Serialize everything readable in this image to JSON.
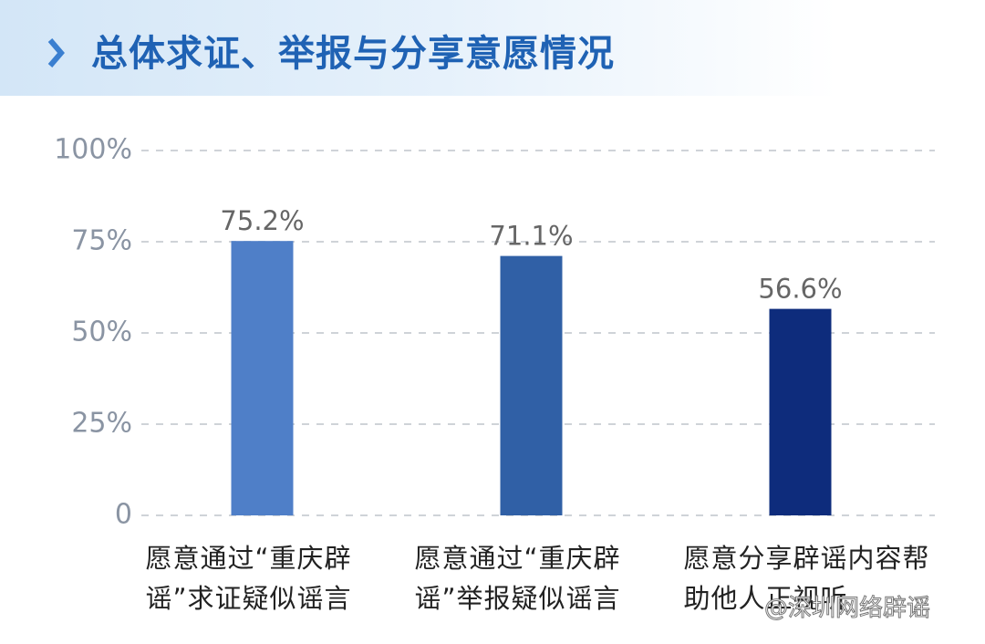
{
  "chart_data": {
    "type": "bar",
    "title": "总体求证、举报与分享意愿情况",
    "categories": [
      "愿意通过“重庆辟谣”求证疑似谣言",
      "愿意通过“重庆辟谣”举报疑似谣言",
      "愿意分享辟谣内容帮助他人正视听"
    ],
    "values": [
      75.2,
      71.1,
      56.6
    ],
    "value_labels": [
      "75.2%",
      "71.1%",
      "56.6%"
    ],
    "colors": [
      "#4f7fc8",
      "#3060a6",
      "#0e2c7c"
    ],
    "ylim": [
      0,
      100
    ],
    "yticks": [
      0,
      {
        "value": 25,
        "label": "25%"
      },
      {
        "value": 50,
        "label": "50%"
      },
      {
        "value": 75,
        "label": "75%"
      },
      {
        "value": 100,
        "label": "100%"
      }
    ],
    "grid": true,
    "watermark": "@深圳网络辟谣"
  }
}
